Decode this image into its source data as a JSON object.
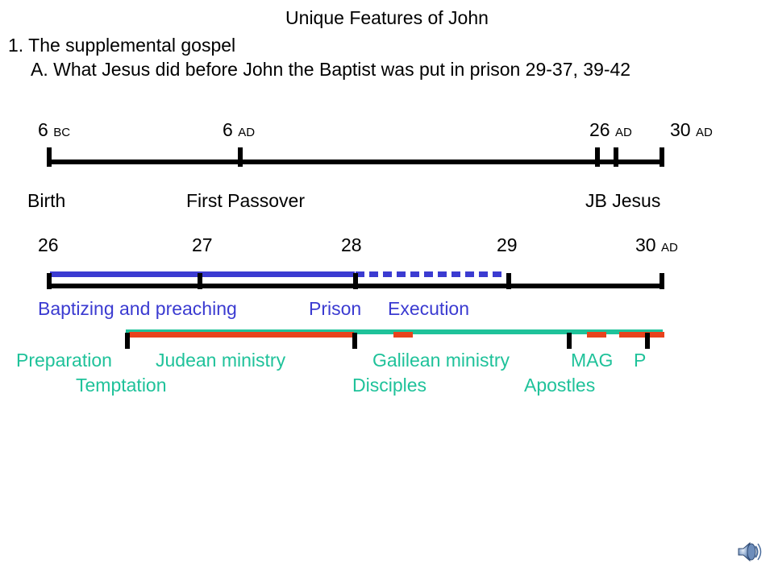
{
  "title": "Unique Features of John",
  "point1": "1. The supplemental gospel",
  "pointA": "A. What Jesus did before John the Baptist was put in prison  29-37, 39-42",
  "timeline1": {
    "dates": [
      {
        "num": "6 ",
        "era": "BC"
      },
      {
        "num": "6 ",
        "era": "AD"
      },
      {
        "num": "26 ",
        "era": "AD"
      },
      {
        "num": "30 ",
        "era": "AD"
      }
    ],
    "labels": {
      "birth": "Birth",
      "first_passover": "First Passover",
      "jb_jesus": "JB Jesus"
    }
  },
  "timeline2": {
    "years": [
      {
        "num": "26",
        "era": ""
      },
      {
        "num": "27",
        "era": ""
      },
      {
        "num": "28",
        "era": ""
      },
      {
        "num": "29",
        "era": ""
      },
      {
        "num": "30 ",
        "era": "AD"
      }
    ],
    "john_labels": {
      "baptizing": "Baptizing and preaching",
      "prison": "Prison",
      "execution": "Execution"
    },
    "jesus_labels": {
      "preparation": "Preparation",
      "temptation": "Temptation",
      "judean": "Judean ministry",
      "galilean": "Galilean ministry",
      "disciples": "Disciples",
      "apostles": "Apostles",
      "mag": "MAG",
      "p": "P"
    }
  },
  "colors": {
    "axis": "#000000",
    "john": "#3b3bd1",
    "jesus_teal": "#1fc29a",
    "jesus_red": "#e8431d"
  },
  "icons": {
    "speaker": "speaker-icon"
  }
}
